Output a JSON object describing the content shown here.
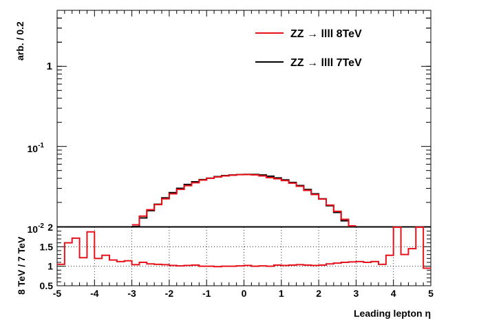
{
  "chart_data": [
    {
      "type": "line",
      "panel": "main",
      "ylabel": "arb. / 0.2",
      "yscale": "log",
      "ylim": [
        0.01,
        5
      ],
      "xlim": [
        -5,
        5
      ],
      "y_tick_labels": {
        "one": "1",
        "tenth_base": "10",
        "tenth_exp": "-1",
        "hundredth_base": "10",
        "hundredth_exp": "-2"
      },
      "legend": {
        "placement": "top-right",
        "entries": [
          {
            "label": "ZZ → llll 8TeV",
            "color": "#e8101a"
          },
          {
            "label": "ZZ → llll 7TeV",
            "color": "#000000"
          }
        ]
      },
      "series": [
        {
          "name": "ZZ → llll 8TeV",
          "color": "#e8101a",
          "x": [
            -3.0,
            -2.8,
            -2.6,
            -2.4,
            -2.2,
            -2.0,
            -1.8,
            -1.6,
            -1.4,
            -1.2,
            -1.0,
            -0.8,
            -0.6,
            -0.4,
            -0.2,
            0.0,
            0.2,
            0.4,
            0.6,
            0.8,
            1.0,
            1.2,
            1.4,
            1.6,
            1.8,
            2.0,
            2.2,
            2.4,
            2.6,
            2.8
          ],
          "y": [
            0.0105,
            0.0135,
            0.0162,
            0.0188,
            0.0222,
            0.0256,
            0.0291,
            0.0324,
            0.0352,
            0.038,
            0.04,
            0.0416,
            0.0428,
            0.0437,
            0.0444,
            0.0446,
            0.0441,
            0.0428,
            0.0408,
            0.0395,
            0.0375,
            0.0348,
            0.0318,
            0.0283,
            0.0251,
            0.022,
            0.0185,
            0.0155,
            0.0123,
            0.0102
          ]
        },
        {
          "name": "ZZ → llll 7TeV",
          "color": "#000000",
          "x": [
            -3.0,
            -2.8,
            -2.6,
            -2.4,
            -2.2,
            -2.0,
            -1.8,
            -1.6,
            -1.4,
            -1.2,
            -1.0,
            -0.8,
            -0.6,
            -0.4,
            -0.2,
            0.0,
            0.2,
            0.4,
            0.6,
            0.8,
            1.0,
            1.2,
            1.4,
            1.6,
            1.8,
            2.0,
            2.2,
            2.4,
            2.6,
            2.8
          ],
          "y": [
            0.01,
            0.0128,
            0.0158,
            0.019,
            0.0228,
            0.0265,
            0.03,
            0.0335,
            0.0362,
            0.0385,
            0.0402,
            0.042,
            0.0433,
            0.044,
            0.0446,
            0.0448,
            0.0447,
            0.044,
            0.0425,
            0.0405,
            0.0382,
            0.0355,
            0.0325,
            0.029,
            0.0256,
            0.0222,
            0.0182,
            0.015,
            0.0118,
            0.0098
          ]
        }
      ]
    },
    {
      "type": "line",
      "panel": "ratio",
      "xlabel": "Leading lepton  η",
      "ylabel": "8 TeV / 7 TeV",
      "ylim": [
        0.5,
        2
      ],
      "xlim": [
        -5,
        5
      ],
      "grid": true,
      "x_ticks": [
        "-5",
        "-4",
        "-3",
        "-2",
        "-1",
        "0",
        "1",
        "2",
        "3",
        "4",
        "5"
      ],
      "y_ticks": [
        "0.5",
        "1",
        "1.5",
        "2"
      ],
      "series": [
        {
          "name": "",
          "color": "#e8101a",
          "x": [
            -5.0,
            -4.8,
            -4.6,
            -4.4,
            -4.2,
            -4.0,
            -3.8,
            -3.6,
            -3.4,
            -3.2,
            -3.0,
            -2.8,
            -2.6,
            -2.4,
            -2.2,
            -2.0,
            -1.8,
            -1.6,
            -1.4,
            -1.2,
            -1.0,
            -0.8,
            -0.6,
            -0.4,
            -0.2,
            0.0,
            0.2,
            0.4,
            0.6,
            0.8,
            1.0,
            1.2,
            1.4,
            1.6,
            1.8,
            2.0,
            2.2,
            2.4,
            2.6,
            2.8,
            3.0,
            3.2,
            3.4,
            3.6,
            3.8,
            4.0,
            4.2,
            4.4,
            4.6,
            4.8
          ],
          "y": [
            1.05,
            1.6,
            1.72,
            1.22,
            1.88,
            1.2,
            1.28,
            1.16,
            1.12,
            1.14,
            1.04,
            1.1,
            1.06,
            1.05,
            1.04,
            1.02,
            1.01,
            1.02,
            1.03,
            1.0,
            1.0,
            0.99,
            1.0,
            1.0,
            1.01,
            1.02,
            1.0,
            1.01,
            1.0,
            1.03,
            1.02,
            1.03,
            1.04,
            1.03,
            1.02,
            1.03,
            1.06,
            1.08,
            1.1,
            1.11,
            1.12,
            1.1,
            1.12,
            1.05,
            1.28,
            2.0,
            1.3,
            1.45,
            2.0,
            0.95
          ]
        }
      ]
    }
  ]
}
